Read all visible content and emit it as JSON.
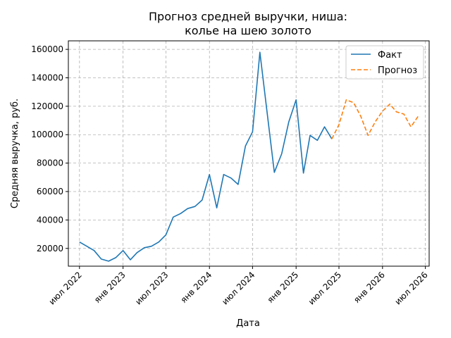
{
  "chart_data": {
    "type": "line",
    "title": "Прогноз средней выручки, ниша:\nколье на шею золото",
    "xlabel": "Дата",
    "ylabel": "Средняя выручка, руб.",
    "ylim": [
      7500,
      166000
    ],
    "xlim": [
      "2022-05-15",
      "2026-07-17"
    ],
    "grid": true,
    "legend_position": "top-right",
    "yticks": [
      20000,
      40000,
      60000,
      80000,
      100000,
      120000,
      140000,
      160000
    ],
    "xticks": [
      {
        "date": "2022-07-01",
        "label": "июл 2022"
      },
      {
        "date": "2023-01-01",
        "label": "янв 2023"
      },
      {
        "date": "2023-07-01",
        "label": "июл 2023"
      },
      {
        "date": "2024-01-01",
        "label": "янв 2024"
      },
      {
        "date": "2024-07-01",
        "label": "июл 2024"
      },
      {
        "date": "2025-01-01",
        "label": "янв 2025"
      },
      {
        "date": "2025-07-01",
        "label": "июл 2025"
      },
      {
        "date": "2026-01-01",
        "label": "янв 2026"
      },
      {
        "date": "2026-07-01",
        "label": "июл 2026"
      }
    ],
    "series": [
      {
        "name": "Факт",
        "color": "#1f77b4",
        "style": "solid",
        "points": [
          [
            "2022-07-01",
            24500
          ],
          [
            "2022-08-01",
            21500
          ],
          [
            "2022-09-01",
            18500
          ],
          [
            "2022-10-01",
            12500
          ],
          [
            "2022-11-01",
            11000
          ],
          [
            "2022-12-01",
            13500
          ],
          [
            "2023-01-01",
            18500
          ],
          [
            "2023-02-01",
            12000
          ],
          [
            "2023-03-01",
            17000
          ],
          [
            "2023-04-01",
            20500
          ],
          [
            "2023-05-01",
            21500
          ],
          [
            "2023-06-01",
            24500
          ],
          [
            "2023-07-01",
            29500
          ],
          [
            "2023-08-01",
            42000
          ],
          [
            "2023-09-01",
            44500
          ],
          [
            "2023-10-01",
            48000
          ],
          [
            "2023-11-01",
            49500
          ],
          [
            "2023-12-01",
            54000
          ],
          [
            "2024-01-01",
            72000
          ],
          [
            "2024-02-01",
            48500
          ],
          [
            "2024-03-01",
            72000
          ],
          [
            "2024-04-01",
            69500
          ],
          [
            "2024-05-01",
            65000
          ],
          [
            "2024-06-01",
            92000
          ],
          [
            "2024-07-01",
            102000
          ],
          [
            "2024-08-01",
            158000
          ],
          [
            "2024-09-01",
            115000
          ],
          [
            "2024-10-01",
            73500
          ],
          [
            "2024-11-01",
            86500
          ],
          [
            "2024-12-01",
            109000
          ],
          [
            "2025-01-01",
            124500
          ],
          [
            "2025-02-01",
            73000
          ],
          [
            "2025-03-01",
            99500
          ],
          [
            "2025-04-01",
            96000
          ],
          [
            "2025-05-01",
            105500
          ],
          [
            "2025-06-01",
            97000
          ]
        ]
      },
      {
        "name": "Прогноз",
        "color": "#ff7f0e",
        "style": "dashed",
        "points": [
          [
            "2025-06-01",
            97000
          ],
          [
            "2025-07-01",
            107000
          ],
          [
            "2025-08-01",
            124500
          ],
          [
            "2025-09-01",
            122500
          ],
          [
            "2025-10-01",
            113000
          ],
          [
            "2025-11-01",
            99500
          ],
          [
            "2025-12-01",
            109000
          ],
          [
            "2026-01-01",
            116500
          ],
          [
            "2026-02-01",
            121500
          ],
          [
            "2026-03-01",
            116000
          ],
          [
            "2026-04-01",
            114500
          ],
          [
            "2026-05-01",
            105500
          ],
          [
            "2026-06-01",
            113000
          ]
        ]
      }
    ]
  }
}
